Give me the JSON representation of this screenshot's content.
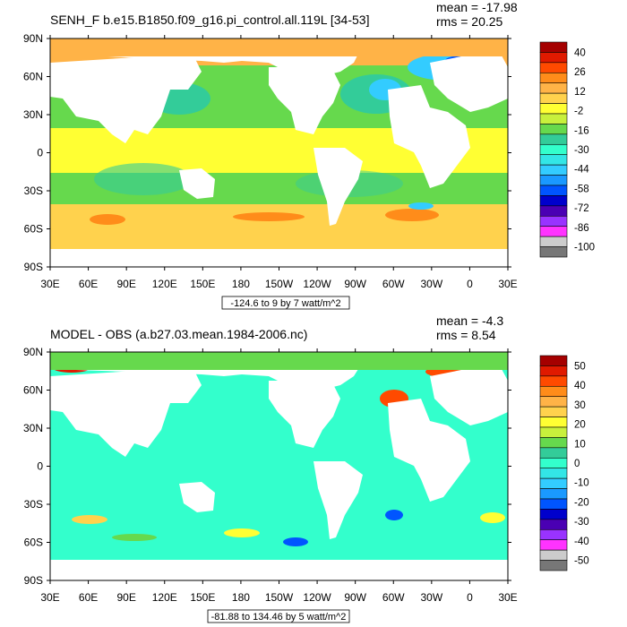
{
  "panels": [
    {
      "title": "SENH_F b.e15.B1850.f09_g16.pi_control.all.119L [34-53]",
      "mean": "mean = -17.98",
      "rms": "rms = 20.25",
      "range_note": "-124.6 to 9 by 7 watt/m^2",
      "colorbar": {
        "labels": [
          "40",
          "26",
          "12",
          "-2",
          "-16",
          "-30",
          "-44",
          "-58",
          "-72",
          "-86",
          "-100"
        ],
        "colors": [
          "#a50000",
          "#e01a00",
          "#ff4a00",
          "#ff8c1a",
          "#ffb347",
          "#ffd24d",
          "#ffff33",
          "#c8f03c",
          "#66d94d",
          "#33cc99",
          "#33ffcc",
          "#33e6e6",
          "#33ccff",
          "#1a99ff",
          "#0055ff",
          "#0000cc",
          "#4a00b3",
          "#9933ff",
          "#ff33ff",
          "#cccccc",
          "#777777"
        ]
      }
    },
    {
      "title": "MODEL - OBS (a.b27.03.mean.1984-2006.nc)",
      "mean": "mean = -4.3",
      "rms": "rms = 8.54",
      "range_note": "-81.88 to 134.46 by 5 watt/m^2",
      "colorbar": {
        "labels": [
          "50",
          "40",
          "30",
          "20",
          "10",
          "0",
          "-10",
          "-20",
          "-30",
          "-40",
          "-50"
        ],
        "colors": [
          "#a50000",
          "#e01a00",
          "#ff4a00",
          "#ff8c1a",
          "#ffb347",
          "#ffd24d",
          "#ffff33",
          "#c8f03c",
          "#66d94d",
          "#33cc99",
          "#33ffcc",
          "#33e6e6",
          "#33ccff",
          "#1a99ff",
          "#0055ff",
          "#0000cc",
          "#4a00b3",
          "#9933ff",
          "#ff33ff",
          "#cccccc",
          "#777777"
        ]
      }
    }
  ],
  "lat_labels": [
    "90N",
    "60N",
    "30N",
    "0",
    "30S",
    "60S",
    "90S"
  ],
  "lon_labels": [
    "30E",
    "60E",
    "90E",
    "120E",
    "150E",
    "180",
    "150W",
    "120W",
    "90W",
    "60W",
    "30W",
    "0",
    "30E"
  ]
}
